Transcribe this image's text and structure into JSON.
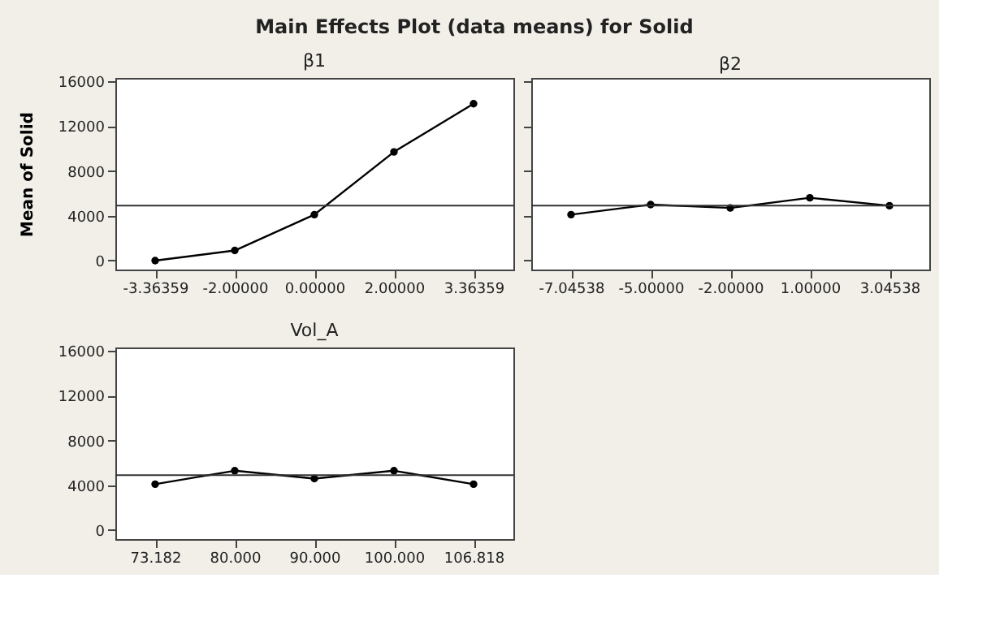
{
  "chart_data": [
    {
      "type": "line",
      "title": "Main Effects Plot (data means) for Solid",
      "xlabel": "β1",
      "ylabel": "Mean of Solid",
      "categories": [
        "-3.36359",
        "-2.00000",
        "0.00000",
        "2.00000",
        "3.36359"
      ],
      "series": [
        {
          "color": "#000000",
          "values": [
            0,
            900,
            4100,
            9700,
            14000
          ]
        }
      ],
      "ylim": [
        -800,
        16300
      ],
      "yticks": [
        0,
        4000,
        8000,
        12000,
        16000
      ],
      "grid": false,
      "marker": "circle",
      "line_style": "solid",
      "ref_lines": [
        {
          "axis": "y",
          "value": 4900,
          "color": "#333333"
        }
      ]
    },
    {
      "type": "line",
      "xlabel": "β2",
      "categories": [
        "-7.04538",
        "-5.00000",
        "-2.00000",
        "1.00000",
        "3.04538"
      ],
      "series": [
        {
          "color": "#000000",
          "values": [
            4100,
            5000,
            4700,
            5600,
            4900
          ]
        }
      ],
      "ylim": [
        -800,
        16300
      ],
      "yticks": [
        0,
        4000,
        8000,
        12000,
        16000
      ],
      "tick_labels": "x",
      "grid": false,
      "marker": "circle",
      "line_style": "solid",
      "ref_lines": [
        {
          "axis": "y",
          "value": 4900,
          "color": "#333333"
        }
      ]
    },
    {
      "type": "line",
      "xlabel": "Vol_A",
      "categories": [
        "73.182",
        "80.000",
        "90.000",
        "100.000",
        "106.818"
      ],
      "series": [
        {
          "color": "#000000",
          "values": [
            4100,
            5300,
            4600,
            5300,
            4100
          ]
        }
      ],
      "ylim": [
        -800,
        16300
      ],
      "yticks": [
        0,
        4000,
        8000,
        12000,
        16000
      ],
      "grid": false,
      "marker": "circle",
      "line_style": "solid",
      "ref_lines": [
        {
          "axis": "y",
          "value": 4900,
          "color": "#333333"
        }
      ]
    }
  ]
}
